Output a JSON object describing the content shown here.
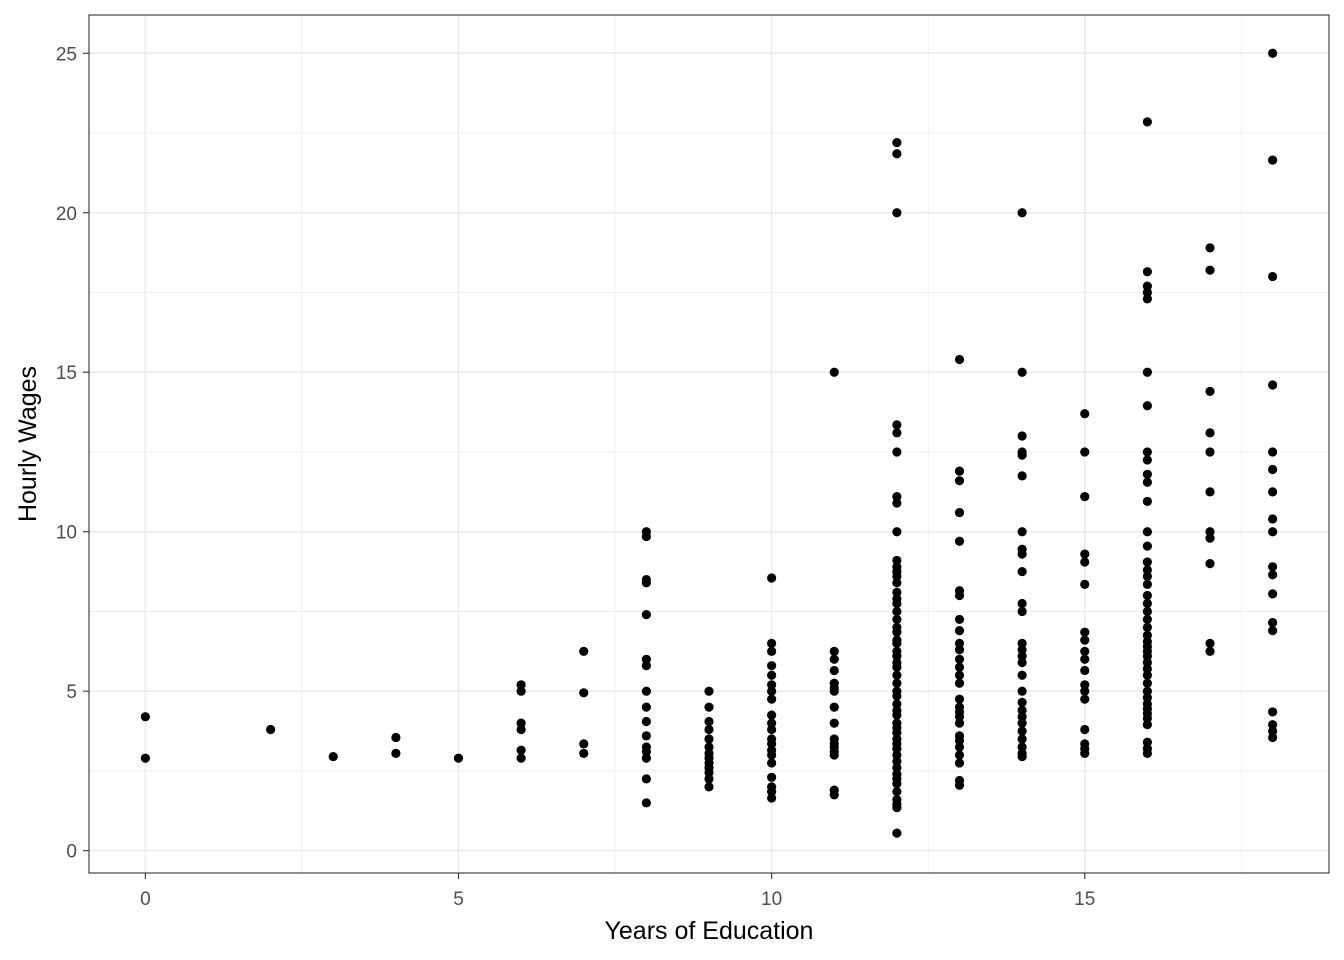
{
  "chart_data": {
    "type": "scatter",
    "title": "",
    "xlabel": "Years of Education",
    "ylabel": "Hourly Wages",
    "xlim": [
      -0.9,
      18.9
    ],
    "ylim": [
      -0.7,
      26.2
    ],
    "x_ticks": [
      "0",
      "5",
      "10",
      "15"
    ],
    "y_ticks": [
      "0",
      "5",
      "10",
      "15",
      "20",
      "25"
    ],
    "grid": true,
    "legend": "none",
    "point_color": "#000000",
    "series": [
      {
        "points": [
          [
            0,
            4.2
          ],
          [
            0,
            2.9
          ],
          [
            2,
            3.8
          ],
          [
            3,
            2.95
          ],
          [
            4,
            3.55
          ],
          [
            4,
            3.05
          ],
          [
            5,
            2.9
          ],
          [
            6,
            5.2
          ],
          [
            6,
            5.0
          ],
          [
            6,
            4.0
          ],
          [
            6,
            3.8
          ],
          [
            6,
            3.15
          ],
          [
            6,
            2.9
          ],
          [
            7,
            6.25
          ],
          [
            7,
            4.95
          ],
          [
            7,
            3.35
          ],
          [
            7,
            3.05
          ],
          [
            8,
            10.0
          ],
          [
            8,
            9.85
          ],
          [
            8,
            8.5
          ],
          [
            8,
            8.4
          ],
          [
            8,
            7.4
          ],
          [
            8,
            6.0
          ],
          [
            8,
            5.8
          ],
          [
            8,
            5.0
          ],
          [
            8,
            4.5
          ],
          [
            8,
            4.05
          ],
          [
            8,
            3.6
          ],
          [
            8,
            3.25
          ],
          [
            8,
            3.1
          ],
          [
            8,
            2.9
          ],
          [
            8,
            2.25
          ],
          [
            8,
            1.5
          ],
          [
            9,
            5.0
          ],
          [
            9,
            4.5
          ],
          [
            9,
            4.05
          ],
          [
            9,
            3.8
          ],
          [
            9,
            3.5
          ],
          [
            9,
            3.25
          ],
          [
            9,
            3.05
          ],
          [
            9,
            2.9
          ],
          [
            9,
            2.75
          ],
          [
            9,
            2.6
          ],
          [
            9,
            2.45
          ],
          [
            9,
            2.25
          ],
          [
            9,
            2.0
          ],
          [
            10,
            8.55
          ],
          [
            10,
            6.5
          ],
          [
            10,
            6.25
          ],
          [
            10,
            5.8
          ],
          [
            10,
            5.5
          ],
          [
            10,
            5.2
          ],
          [
            10,
            5.0
          ],
          [
            10,
            4.75
          ],
          [
            10,
            4.25
          ],
          [
            10,
            4.0
          ],
          [
            10,
            3.8
          ],
          [
            10,
            3.5
          ],
          [
            10,
            3.35
          ],
          [
            10,
            3.15
          ],
          [
            10,
            3.0
          ],
          [
            10,
            2.75
          ],
          [
            10,
            2.3
          ],
          [
            10,
            2.0
          ],
          [
            10,
            1.85
          ],
          [
            10,
            1.65
          ],
          [
            11,
            15.0
          ],
          [
            11,
            6.25
          ],
          [
            11,
            6.0
          ],
          [
            11,
            5.65
          ],
          [
            11,
            5.25
          ],
          [
            11,
            5.1
          ],
          [
            11,
            5.0
          ],
          [
            11,
            4.5
          ],
          [
            11,
            4.0
          ],
          [
            11,
            3.5
          ],
          [
            11,
            3.35
          ],
          [
            11,
            3.25
          ],
          [
            11,
            3.1
          ],
          [
            11,
            3.0
          ],
          [
            11,
            1.9
          ],
          [
            11,
            1.75
          ],
          [
            12,
            22.2
          ],
          [
            12,
            21.85
          ],
          [
            12,
            20.0
          ],
          [
            12,
            13.35
          ],
          [
            12,
            13.1
          ],
          [
            12,
            12.5
          ],
          [
            12,
            11.1
          ],
          [
            12,
            10.9
          ],
          [
            12,
            10.0
          ],
          [
            12,
            9.1
          ],
          [
            12,
            8.9
          ],
          [
            12,
            8.75
          ],
          [
            12,
            8.6
          ],
          [
            12,
            8.4
          ],
          [
            12,
            8.1
          ],
          [
            12,
            7.9
          ],
          [
            12,
            7.75
          ],
          [
            12,
            7.5
          ],
          [
            12,
            7.25
          ],
          [
            12,
            7.0
          ],
          [
            12,
            6.85
          ],
          [
            12,
            6.6
          ],
          [
            12,
            6.5
          ],
          [
            12,
            6.25
          ],
          [
            12,
            6.1
          ],
          [
            12,
            5.9
          ],
          [
            12,
            5.75
          ],
          [
            12,
            5.5
          ],
          [
            12,
            5.25
          ],
          [
            12,
            5.0
          ],
          [
            12,
            4.85
          ],
          [
            12,
            4.6
          ],
          [
            12,
            4.4
          ],
          [
            12,
            4.25
          ],
          [
            12,
            4.0
          ],
          [
            12,
            3.85
          ],
          [
            12,
            3.7
          ],
          [
            12,
            3.5
          ],
          [
            12,
            3.35
          ],
          [
            12,
            3.2
          ],
          [
            12,
            3.0
          ],
          [
            12,
            2.8
          ],
          [
            12,
            2.6
          ],
          [
            12,
            2.4
          ],
          [
            12,
            2.25
          ],
          [
            12,
            2.1
          ],
          [
            12,
            1.85
          ],
          [
            12,
            1.6
          ],
          [
            12,
            1.45
          ],
          [
            12,
            1.35
          ],
          [
            12,
            0.55
          ],
          [
            13,
            15.4
          ],
          [
            13,
            11.9
          ],
          [
            13,
            11.6
          ],
          [
            13,
            10.6
          ],
          [
            13,
            9.7
          ],
          [
            13,
            8.15
          ],
          [
            13,
            8.0
          ],
          [
            13,
            7.25
          ],
          [
            13,
            6.9
          ],
          [
            13,
            6.5
          ],
          [
            13,
            6.3
          ],
          [
            13,
            6.0
          ],
          [
            13,
            5.75
          ],
          [
            13,
            5.5
          ],
          [
            13,
            5.25
          ],
          [
            13,
            4.75
          ],
          [
            13,
            4.5
          ],
          [
            13,
            4.35
          ],
          [
            13,
            4.2
          ],
          [
            13,
            4.0
          ],
          [
            13,
            3.6
          ],
          [
            13,
            3.45
          ],
          [
            13,
            3.25
          ],
          [
            13,
            3.0
          ],
          [
            13,
            2.75
          ],
          [
            13,
            2.2
          ],
          [
            13,
            2.05
          ],
          [
            14,
            20.0
          ],
          [
            14,
            15.0
          ],
          [
            14,
            13.0
          ],
          [
            14,
            12.5
          ],
          [
            14,
            12.4
          ],
          [
            14,
            11.75
          ],
          [
            14,
            10.0
          ],
          [
            14,
            9.45
          ],
          [
            14,
            9.3
          ],
          [
            14,
            8.75
          ],
          [
            14,
            7.75
          ],
          [
            14,
            7.5
          ],
          [
            14,
            6.5
          ],
          [
            14,
            6.3
          ],
          [
            14,
            6.1
          ],
          [
            14,
            5.9
          ],
          [
            14,
            5.5
          ],
          [
            14,
            5.0
          ],
          [
            14,
            4.65
          ],
          [
            14,
            4.4
          ],
          [
            14,
            4.2
          ],
          [
            14,
            4.0
          ],
          [
            14,
            3.75
          ],
          [
            14,
            3.5
          ],
          [
            14,
            3.25
          ],
          [
            14,
            3.05
          ],
          [
            14,
            2.95
          ],
          [
            15,
            13.7
          ],
          [
            15,
            12.5
          ],
          [
            15,
            11.1
          ],
          [
            15,
            9.3
          ],
          [
            15,
            9.05
          ],
          [
            15,
            8.35
          ],
          [
            15,
            6.85
          ],
          [
            15,
            6.6
          ],
          [
            15,
            6.25
          ],
          [
            15,
            6.0
          ],
          [
            15,
            5.65
          ],
          [
            15,
            5.2
          ],
          [
            15,
            5.0
          ],
          [
            15,
            4.75
          ],
          [
            15,
            3.8
          ],
          [
            15,
            3.35
          ],
          [
            15,
            3.2
          ],
          [
            15,
            3.05
          ],
          [
            16,
            22.85
          ],
          [
            16,
            18.15
          ],
          [
            16,
            17.7
          ],
          [
            16,
            17.5
          ],
          [
            16,
            17.3
          ],
          [
            16,
            15.0
          ],
          [
            16,
            13.95
          ],
          [
            16,
            12.5
          ],
          [
            16,
            12.25
          ],
          [
            16,
            11.8
          ],
          [
            16,
            11.55
          ],
          [
            16,
            10.95
          ],
          [
            16,
            10.0
          ],
          [
            16,
            9.55
          ],
          [
            16,
            9.05
          ],
          [
            16,
            8.8
          ],
          [
            16,
            8.6
          ],
          [
            16,
            8.35
          ],
          [
            16,
            8.0
          ],
          [
            16,
            7.75
          ],
          [
            16,
            7.5
          ],
          [
            16,
            7.25
          ],
          [
            16,
            7.0
          ],
          [
            16,
            6.75
          ],
          [
            16,
            6.55
          ],
          [
            16,
            6.4
          ],
          [
            16,
            6.25
          ],
          [
            16,
            6.1
          ],
          [
            16,
            5.9
          ],
          [
            16,
            5.7
          ],
          [
            16,
            5.5
          ],
          [
            16,
            5.25
          ],
          [
            16,
            5.0
          ],
          [
            16,
            4.8
          ],
          [
            16,
            4.6
          ],
          [
            16,
            4.45
          ],
          [
            16,
            4.3
          ],
          [
            16,
            4.15
          ],
          [
            16,
            3.95
          ],
          [
            16,
            3.4
          ],
          [
            16,
            3.2
          ],
          [
            16,
            3.05
          ],
          [
            17,
            18.9
          ],
          [
            17,
            18.2
          ],
          [
            17,
            14.4
          ],
          [
            17,
            13.1
          ],
          [
            17,
            12.5
          ],
          [
            17,
            11.25
          ],
          [
            17,
            10.0
          ],
          [
            17,
            9.8
          ],
          [
            17,
            9.0
          ],
          [
            17,
            6.5
          ],
          [
            17,
            6.25
          ],
          [
            18,
            25.0
          ],
          [
            18,
            21.65
          ],
          [
            18,
            18.0
          ],
          [
            18,
            14.6
          ],
          [
            18,
            12.5
          ],
          [
            18,
            11.95
          ],
          [
            18,
            11.25
          ],
          [
            18,
            10.4
          ],
          [
            18,
            10.0
          ],
          [
            18,
            8.9
          ],
          [
            18,
            8.65
          ],
          [
            18,
            8.05
          ],
          [
            18,
            7.15
          ],
          [
            18,
            6.9
          ],
          [
            18,
            4.35
          ],
          [
            18,
            3.95
          ],
          [
            18,
            3.75
          ],
          [
            18,
            3.55
          ]
        ]
      }
    ]
  }
}
